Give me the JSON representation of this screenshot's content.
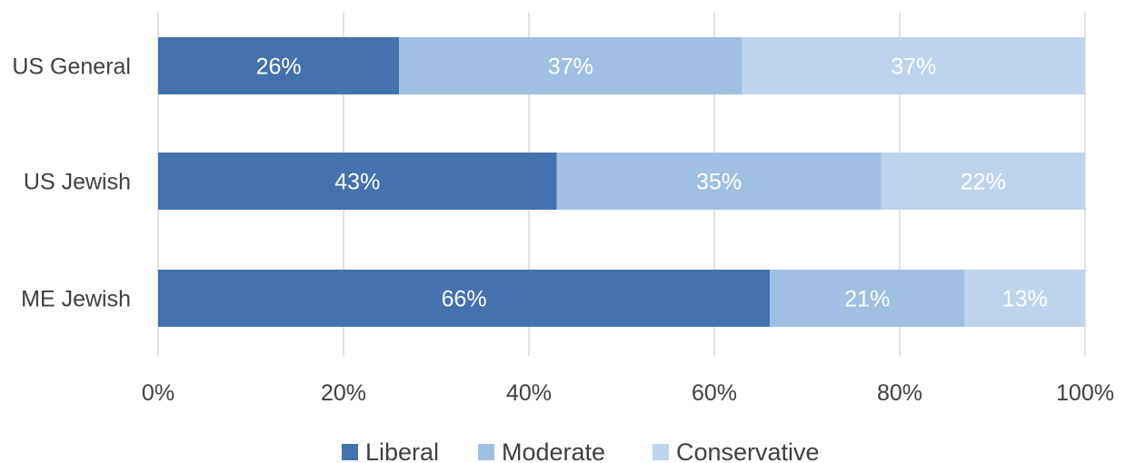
{
  "chart_data": {
    "type": "bar",
    "orientation": "horizontal",
    "stacked": true,
    "categories": [
      "US General",
      "US Jewish",
      "ME Jewish"
    ],
    "series": [
      {
        "name": "Liberal",
        "values": [
          26,
          43,
          66
        ],
        "labels": [
          "26%",
          "43%",
          "66%"
        ],
        "color": "#4372ae"
      },
      {
        "name": "Moderate",
        "values": [
          37,
          35,
          21
        ],
        "labels": [
          "37%",
          "35%",
          "21%"
        ],
        "color": "#a1bfe3"
      },
      {
        "name": "Conservative",
        "values": [
          37,
          22,
          13
        ],
        "labels": [
          "37%",
          "22%",
          "13%"
        ],
        "color": "#bfd3ec"
      }
    ],
    "x_ticks": [
      "0%",
      "20%",
      "40%",
      "60%",
      "80%",
      "100%"
    ],
    "xlim": [
      0,
      100
    ],
    "grid": "vertical",
    "legend": "bottom",
    "title": "",
    "xlabel": "",
    "ylabel": ""
  }
}
